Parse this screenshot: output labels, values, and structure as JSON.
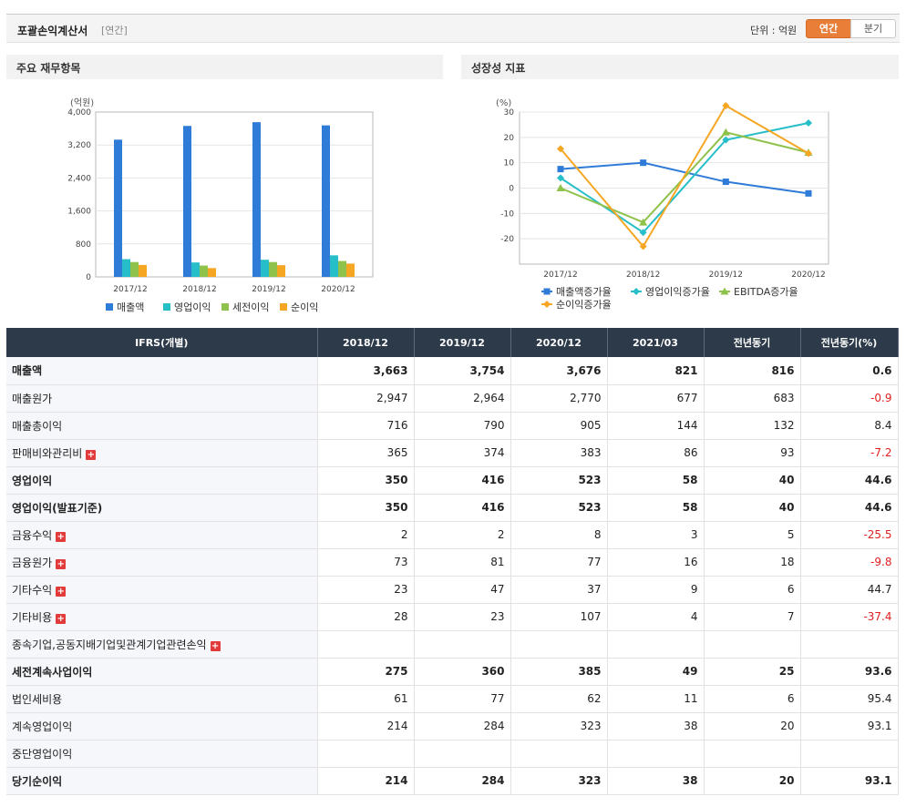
{
  "header": {
    "title": "포괄손익계산서",
    "period_type": "[연간]",
    "unit_label": "단위 : 억원",
    "toggle_annual": "연간",
    "toggle_quarter": "분기"
  },
  "panels": {
    "left_title": "주요 재무항목",
    "right_title": "성장성 지표"
  },
  "colors": {
    "sales": "#2f7bd8",
    "op": "#26bfc9",
    "pretax": "#8fc24a",
    "net": "#f5a623"
  },
  "chart_data": [
    {
      "type": "bar",
      "ylabel": "(억원)",
      "ylim": [
        0,
        4000
      ],
      "yticks": [
        "4,000",
        "3,200",
        "2,400",
        "1,600",
        "800",
        "0"
      ],
      "ytick_values": [
        4000,
        3200,
        2400,
        1600,
        800,
        0
      ],
      "categories": [
        "2017/12",
        "2018/12",
        "2019/12",
        "2020/12"
      ],
      "series": [
        {
          "name": "매출액",
          "values": [
            3330,
            3663,
            3754,
            3676
          ]
        },
        {
          "name": "영업이익",
          "values": [
            430,
            350,
            416,
            523
          ]
        },
        {
          "name": "세전이익",
          "values": [
            360,
            275,
            360,
            385
          ]
        },
        {
          "name": "순이익",
          "values": [
            290,
            214,
            284,
            323
          ]
        }
      ],
      "legend": "bottom"
    },
    {
      "type": "line",
      "ylabel": "(%)",
      "ylim": [
        -30,
        30
      ],
      "yticks": [
        "30",
        "20",
        "10",
        "0",
        "-10",
        "-20"
      ],
      "ytick_values": [
        30,
        20,
        10,
        0,
        -10,
        -20
      ],
      "categories": [
        "2017/12",
        "2018/12",
        "2019/12",
        "2020/12"
      ],
      "series": [
        {
          "name": "매출액증가율",
          "values": [
            7.5,
            10.0,
            2.5,
            -2.1
          ]
        },
        {
          "name": "영업이익증가율",
          "values": [
            4.0,
            -17.5,
            19.0,
            25.7
          ]
        },
        {
          "name": "EBITDA증가율",
          "values": [
            0.0,
            -13.5,
            22.0,
            14.0
          ]
        },
        {
          "name": "순이익증가율",
          "values": [
            15.5,
            -23.0,
            32.5,
            13.7
          ]
        }
      ],
      "legend": "bottom"
    }
  ],
  "table": {
    "headers": [
      "IFRS(개별)",
      "2018/12",
      "2019/12",
      "2020/12",
      "2021/03",
      "전년동기",
      "전년동기(%)"
    ],
    "rows": [
      {
        "label": "매출액",
        "values": [
          "3,663",
          "3,754",
          "3,676",
          "821",
          "816",
          "0.6"
        ]
      },
      {
        "label": "매출원가",
        "values": [
          "2,947",
          "2,964",
          "2,770",
          "677",
          "683",
          "-0.9"
        ]
      },
      {
        "label": "매출총이익",
        "values": [
          "716",
          "790",
          "905",
          "144",
          "132",
          "8.4"
        ]
      },
      {
        "label": "판매비와관리비",
        "values": [
          "365",
          "374",
          "383",
          "86",
          "93",
          "-7.2"
        ]
      },
      {
        "label": "영업이익",
        "values": [
          "350",
          "416",
          "523",
          "58",
          "40",
          "44.6"
        ]
      },
      {
        "label": "영업이익(발표기준)",
        "values": [
          "350",
          "416",
          "523",
          "58",
          "40",
          "44.6"
        ]
      },
      {
        "label": "금융수익",
        "values": [
          "2",
          "2",
          "8",
          "3",
          "5",
          "-25.5"
        ]
      },
      {
        "label": "금융원가",
        "values": [
          "73",
          "81",
          "77",
          "16",
          "18",
          "-9.8"
        ]
      },
      {
        "label": "기타수익",
        "values": [
          "23",
          "47",
          "37",
          "9",
          "6",
          "44.7"
        ]
      },
      {
        "label": "기타비용",
        "values": [
          "28",
          "23",
          "107",
          "4",
          "7",
          "-37.4"
        ]
      },
      {
        "label": "종속기업,공동지배기업및관계기업관련손익",
        "values": [
          "",
          "",
          "",
          "",
          "",
          ""
        ]
      },
      {
        "label": "세전계속사업이익",
        "values": [
          "275",
          "360",
          "385",
          "49",
          "25",
          "93.6"
        ]
      },
      {
        "label": "법인세비용",
        "values": [
          "61",
          "77",
          "62",
          "11",
          "6",
          "95.4"
        ]
      },
      {
        "label": "계속영업이익",
        "values": [
          "214",
          "284",
          "323",
          "38",
          "20",
          "93.1"
        ]
      },
      {
        "label": "중단영업이익",
        "values": [
          "",
          "",
          "",
          "",
          "",
          ""
        ]
      },
      {
        "label": "당기순이익",
        "values": [
          "214",
          "284",
          "323",
          "38",
          "20",
          "93.1"
        ]
      }
    ]
  }
}
